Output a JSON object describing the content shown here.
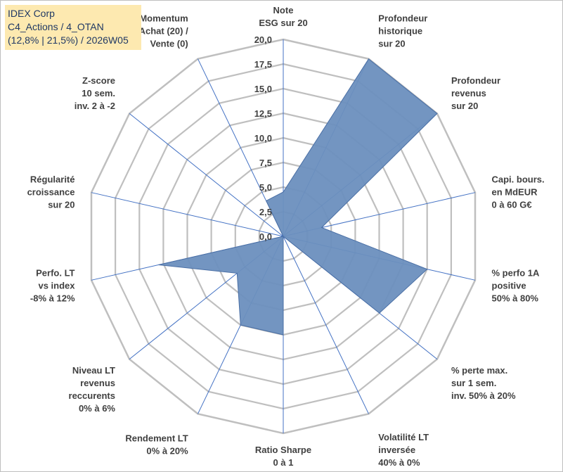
{
  "info_box": {
    "company": "IDEX Corp",
    "category": "C4_Actions / 4_OTAN",
    "details": "(12,8% | 21,5%) / 2026W05"
  },
  "colors": {
    "fill": "#6b8fbe",
    "stroke": "#4a6fa5",
    "axis": "#4472c4",
    "grid": "#bfbfbf",
    "info_bg": "#fde9b0",
    "info_text": "#1f3864"
  },
  "chart_data": {
    "type": "radar",
    "title": "",
    "scale": {
      "min": 0,
      "max": 20,
      "step": 2.5
    },
    "ticks": [
      "0,0",
      "2,5",
      "5,0",
      "7,5",
      "10,0",
      "12,5",
      "15,0",
      "17,5",
      "20,0"
    ],
    "grid": true,
    "axes": [
      [
        "Note",
        "ESG sur 20"
      ],
      [
        "Profondeur",
        "historique",
        "sur 20"
      ],
      [
        "Profondeur",
        "revenus",
        "sur 20"
      ],
      [
        "Capi. bours.",
        "en MdEUR",
        "0 à 60 G€"
      ],
      [
        "% perfo 1A",
        "positive",
        "50% à 80%"
      ],
      [
        "% perte max.",
        "sur 1 sem.",
        "inv. 50% à 20%"
      ],
      [
        "Volatilité LT",
        "inversée",
        "40% à 0%"
      ],
      [
        "Ratio Sharpe",
        "0 à 1"
      ],
      [
        "Rendement LT",
        "0% à 20%"
      ],
      [
        "Niveau LT",
        "revenus",
        "reccurents",
        "0% à 6%"
      ],
      [
        "Perfo. LT",
        "vs index",
        "-8% à 12%"
      ],
      [
        "Régularité",
        "croissance",
        "sur 20"
      ],
      [
        "Z-score",
        "10 sem.",
        "inv. 2 à -2"
      ],
      [
        "Momentum",
        "Achat (20) /",
        "Vente (0)"
      ]
    ],
    "values": [
      4.5,
      20.0,
      20.0,
      4.0,
      15.0,
      12.5,
      0.0,
      10.0,
      10.0,
      6.0,
      13.0,
      0.0,
      0.0,
      4.0
    ]
  }
}
